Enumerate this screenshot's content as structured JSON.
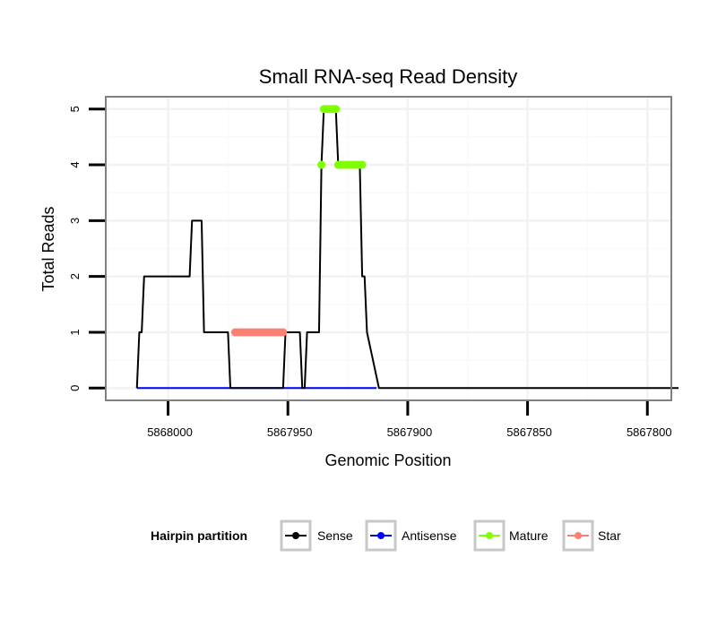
{
  "chart_data": {
    "type": "line",
    "title": "Small RNA-seq Read Density",
    "xlabel": "Genomic Position",
    "ylabel": "Total Reads",
    "x_reversed": true,
    "xlim": [
      5868026,
      5867790
    ],
    "ylim": [
      -0.22,
      5.22
    ],
    "x_ticks": [
      5868000,
      5867950,
      5867900,
      5867850,
      5867800
    ],
    "x_tick_labels": [
      "5868000",
      "5867950",
      "5867900",
      "5867850",
      "5867800"
    ],
    "y_ticks": [
      0,
      1,
      2,
      3,
      4,
      5
    ],
    "y_tick_labels": [
      "0",
      "1",
      "2",
      "3",
      "4",
      "5"
    ],
    "grid": true,
    "legend": {
      "title": "Hairpin partition",
      "position": "bottom",
      "entries": [
        {
          "label": "Sense",
          "color": "#000000"
        },
        {
          "label": "Antisense",
          "color": "#0000ff"
        },
        {
          "label": "Mature",
          "color": "#7fff00"
        },
        {
          "label": "Star",
          "color": "#fa8072"
        }
      ]
    },
    "series": [
      {
        "name": "Sense",
        "color": "#000000",
        "style": "line",
        "x": [
          5868013,
          5868012,
          5868011,
          5868010,
          5867991,
          5867990,
          5867986,
          5867985,
          5867975,
          5867974,
          5867952,
          5867951,
          5867950,
          5867948,
          5867947,
          5867946,
          5867945,
          5867944,
          5867943,
          5867942,
          5867937,
          5867936,
          5867935,
          5867930,
          5867929,
          5867928,
          5867927,
          5867926,
          5867925,
          5867924,
          5867920,
          5867919,
          5867918,
          5867917,
          5867912,
          5867787
        ],
        "y": [
          0,
          1,
          1,
          2,
          2,
          3,
          3,
          1,
          1,
          0,
          0,
          1,
          1,
          1,
          1,
          1,
          1,
          0,
          0,
          1,
          1,
          4,
          5,
          5,
          4,
          4,
          4,
          4,
          4,
          4,
          4,
          2,
          2,
          1,
          0,
          0
        ]
      },
      {
        "name": "Antisense",
        "color": "#0000ff",
        "style": "line",
        "x": [
          5868013,
          5867913
        ],
        "y": [
          0,
          0
        ]
      },
      {
        "name": "Mature",
        "color": "#7fff00",
        "style": "points",
        "x": [
          5867936,
          5867935,
          5867934,
          5867933,
          5867932,
          5867931,
          5867930,
          5867929,
          5867928,
          5867927,
          5867926,
          5867925,
          5867924,
          5867923,
          5867922,
          5867921,
          5867920,
          5867919
        ],
        "y": [
          4,
          5,
          5,
          5,
          5,
          5,
          5,
          4,
          4,
          4,
          4,
          4,
          4,
          4,
          4,
          4,
          4,
          4
        ]
      },
      {
        "name": "Star",
        "color": "#fa8072",
        "style": "points",
        "x": [
          5867972,
          5867971,
          5867970,
          5867969,
          5867968,
          5867967,
          5867966,
          5867965,
          5867964,
          5867963,
          5867962,
          5867961,
          5867960,
          5867959,
          5867958,
          5867957,
          5867956,
          5867955,
          5867954,
          5867953,
          5867952
        ],
        "y": [
          1,
          1,
          1,
          1,
          1,
          1,
          1,
          1,
          1,
          1,
          1,
          1,
          1,
          1,
          1,
          1,
          1,
          1,
          1,
          1,
          1
        ]
      }
    ]
  }
}
